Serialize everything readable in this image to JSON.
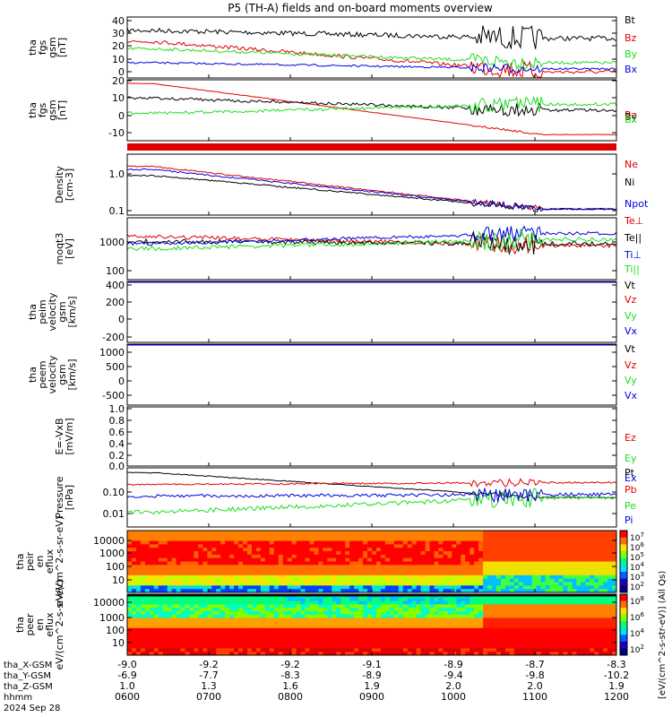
{
  "title": "P5 (TH-A) fields and on-board moments overview",
  "colors": {
    "black": "#000000",
    "red": "#e00000",
    "green": "#20dd20",
    "blue": "#0000e0"
  },
  "x_axis": {
    "rows": [
      {
        "label": "tha_X-GSM",
        "values": [
          "-9.0",
          "-9.2",
          "-9.2",
          "-9.1",
          "-8.9",
          "-8.7",
          "-8.3"
        ]
      },
      {
        "label": "tha_Y-GSM",
        "values": [
          "-6.9",
          "-7.7",
          "-8.3",
          "-8.9",
          "-9.4",
          "-9.8",
          "-10.2"
        ]
      },
      {
        "label": "tha_Z-GSM",
        "values": [
          "1.0",
          "1.3",
          "1.6",
          "1.9",
          "2.0",
          "2.0",
          "1.9"
        ]
      },
      {
        "label": "hhmm",
        "values": [
          "0600",
          "0700",
          "0800",
          "0900",
          "1000",
          "1100",
          "1200"
        ]
      }
    ],
    "date": "2024 Sep 28"
  },
  "colorbar": {
    "label": "[eV/(cm^2-s-str-eV)] (All Qs)"
  },
  "chart_data": [
    {
      "type": "line",
      "id": "fgs_mag",
      "ylabel": "tha fgs gsm [nT]",
      "ylim": [
        -2,
        45
      ],
      "ticks": [
        "40",
        "30",
        "20",
        "10",
        "0"
      ],
      "series": [
        {
          "name": "Bt",
          "color": "black"
        },
        {
          "name": "Bz",
          "color": "red"
        },
        {
          "name": "By",
          "color": "green"
        },
        {
          "name": "Bx",
          "color": "blue"
        }
      ]
    },
    {
      "type": "line",
      "id": "fgs_comp",
      "ylabel": "tha fgs gsm [nT]",
      "ylim": [
        -18,
        22
      ],
      "ticks": [
        "20",
        "10",
        "0",
        "-10"
      ],
      "series": [
        {
          "name": "Bz",
          "color": "red"
        },
        {
          "name": "By",
          "color": "black"
        },
        {
          "name": "Bx",
          "color": "green"
        }
      ]
    },
    {
      "type": "line",
      "id": "density",
      "ylabel": "Density [cm-3]",
      "log": true,
      "ylim": [
        0.08,
        2.5
      ],
      "ticks": [
        "1.0",
        "0.1"
      ],
      "series": [
        {
          "name": "Ne",
          "color": "red"
        },
        {
          "name": "Ni",
          "color": "black"
        },
        {
          "name": "Npot",
          "color": "blue"
        }
      ]
    },
    {
      "type": "line",
      "id": "temperature",
      "ylabel": "moqt3 [eV]",
      "log": true,
      "ylim": [
        80,
        12000
      ],
      "ticks": [
        "1000",
        "100"
      ],
      "series": [
        {
          "name": "Te⊥",
          "color": "red"
        },
        {
          "name": "Te||",
          "color": "black"
        },
        {
          "name": "Ti⊥",
          "color": "blue"
        },
        {
          "name": "Ti||",
          "color": "green"
        }
      ]
    },
    {
      "type": "line",
      "id": "vel_i",
      "ylabel": "tha peim velocity gsm [km/s]",
      "ylim": [
        -240,
        440
      ],
      "ticks": [
        "400",
        "200",
        "0",
        "-200"
      ],
      "series": [
        {
          "name": "Vt",
          "color": "black"
        },
        {
          "name": "Vz",
          "color": "red"
        },
        {
          "name": "Vy",
          "color": "green"
        },
        {
          "name": "Vx",
          "color": "blue"
        }
      ]
    },
    {
      "type": "line",
      "id": "vel_e",
      "ylabel": "tha peem velocity gsm [km/s]",
      "ylim": [
        -700,
        1250
      ],
      "ticks": [
        "1000",
        "500",
        "0",
        "-500"
      ],
      "series": [
        {
          "name": "Vt",
          "color": "black"
        },
        {
          "name": "Vz",
          "color": "red"
        },
        {
          "name": "Vy",
          "color": "green"
        },
        {
          "name": "Vx",
          "color": "blue"
        }
      ]
    },
    {
      "type": "line",
      "id": "efield",
      "ylabel": "E=-VxB [mV/m]",
      "ylim": [
        0,
        1
      ],
      "ticks": [
        "1.0",
        "0.8",
        "0.6",
        "0.4",
        "0.2",
        "0.0"
      ],
      "series": [
        {
          "name": "Ez",
          "color": "red"
        },
        {
          "name": "Ey",
          "color": "green"
        },
        {
          "name": "Ex",
          "color": "blue"
        }
      ]
    },
    {
      "type": "line",
      "id": "pressure",
      "ylabel": "Pressure [nPa]",
      "log": true,
      "ylim": [
        0.002,
        0.8
      ],
      "ticks": [
        "0.10",
        "0.01"
      ],
      "series": [
        {
          "name": "Pt",
          "color": "black"
        },
        {
          "name": "Pb",
          "color": "red"
        },
        {
          "name": "Pe",
          "color": "green"
        },
        {
          "name": "Pi",
          "color": "blue"
        }
      ]
    },
    {
      "type": "heatmap",
      "id": "peir",
      "ylabel": "tha peir en eflux eV/(cm^2-s-sr-eV)",
      "ticks": [
        "10000",
        "1000",
        "100",
        "10"
      ],
      "colorbar_ticks": [
        "10^7",
        "10^6",
        "10^5",
        "10^4",
        "10^3",
        "10^2"
      ]
    },
    {
      "type": "heatmap",
      "id": "peer",
      "ylabel": "tha peer en eflux eV/(cm^2-s-sr-eV)",
      "ticks": [
        "10000",
        "1000",
        "100",
        "10"
      ],
      "colorbar_ticks": [
        "10^8",
        "10^6",
        "10^4",
        "10^2"
      ]
    }
  ]
}
